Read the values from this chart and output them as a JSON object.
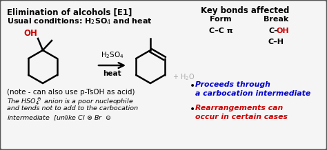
{
  "title": "Elimination of alcohols [E1]",
  "subtitle": "Usual conditions: H$_2$SO$_4$ and heat",
  "note": "(note - can also use p-TsOH as acid)",
  "arrow_label_top": "H$_2$SO$_4$",
  "arrow_label_bot": "heat",
  "key_bonds_title": "Key bonds affected",
  "form_label": "Form",
  "break_label": "Break",
  "bond1_form": "C–C π",
  "bond2_break": "C–H",
  "bullet1_blue": "Proceeds through\na carbocation intermediate",
  "bullet2_red": "Rearrangements can\noccur in certain cases",
  "bg_color": "#f5f5f5",
  "border_color": "#555555",
  "text_color": "#000000",
  "red_color": "#cc0000",
  "blue_color": "#0000cc",
  "gray_color": "#aaaaaa",
  "lw_mol": 1.8
}
